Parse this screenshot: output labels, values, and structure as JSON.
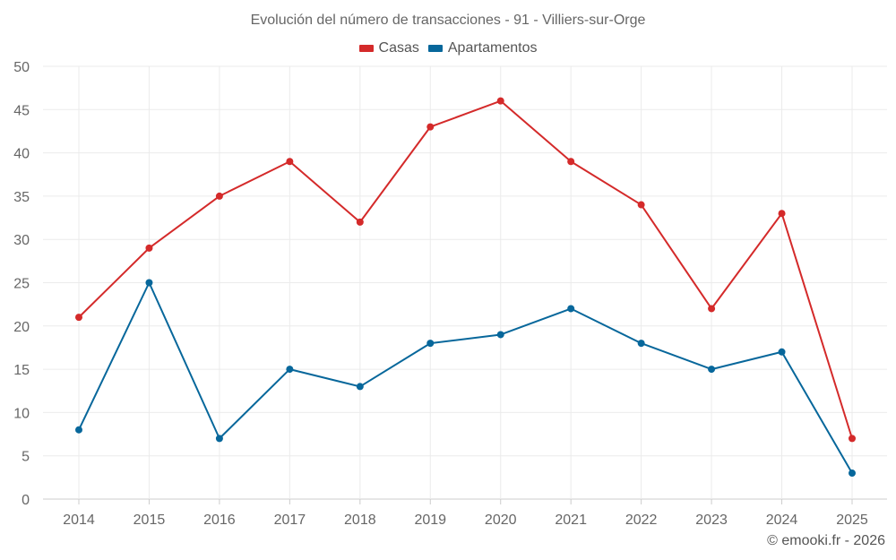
{
  "chart_data": {
    "type": "line",
    "title": "Evolución del número de transacciones - 91 - Villiers-sur-Orge",
    "categories": [
      "2014",
      "2015",
      "2016",
      "2017",
      "2018",
      "2019",
      "2020",
      "2021",
      "2022",
      "2023",
      "2024",
      "2025"
    ],
    "series": [
      {
        "name": "Casas",
        "color": "#d42a2a",
        "values": [
          21,
          29,
          35,
          39,
          32,
          43,
          46,
          39,
          34,
          22,
          33,
          7
        ]
      },
      {
        "name": "Apartamentos",
        "color": "#07679b",
        "values": [
          8,
          25,
          7,
          15,
          13,
          18,
          19,
          22,
          18,
          15,
          17,
          3
        ]
      }
    ],
    "y_ticks": [
      "0",
      "5",
      "10",
      "15",
      "20",
      "25",
      "30",
      "35",
      "40",
      "45",
      "50"
    ],
    "ylim": [
      0,
      50
    ],
    "xlabel": "",
    "ylabel": "",
    "grid": true,
    "legend_position": "top-center"
  },
  "credit": "© emooki.fr - 2026"
}
